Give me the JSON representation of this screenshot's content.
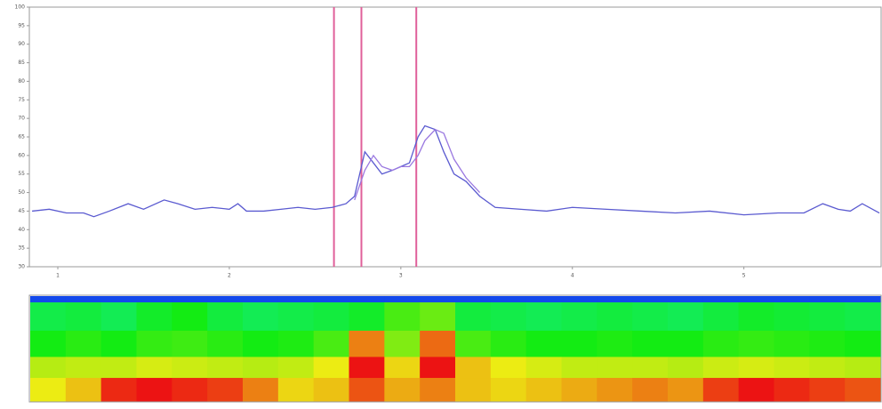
{
  "chart_data": [
    {
      "type": "line",
      "x": [
        0.85,
        0.95,
        1.05,
        1.15,
        1.21,
        1.3,
        1.41,
        1.5,
        1.62,
        1.7,
        1.8,
        1.9,
        2.0,
        2.05,
        2.1,
        2.2,
        2.3,
        2.4,
        2.5,
        2.6,
        2.68,
        2.73,
        2.79,
        2.84,
        2.89,
        2.95,
        3.0,
        3.05,
        3.1,
        3.14,
        3.2,
        3.25,
        3.31,
        3.38,
        3.46,
        3.55,
        3.7,
        3.85,
        4.0,
        4.2,
        4.4,
        4.6,
        4.8,
        5.0,
        5.2,
        5.35,
        5.46,
        5.55,
        5.62,
        5.69,
        5.79
      ],
      "series": [
        {
          "color": "#5a5ad0",
          "values": [
            45,
            45.5,
            44.5,
            44.5,
            43.5,
            45,
            47,
            45.5,
            48,
            47,
            45.5,
            46,
            45.5,
            47,
            45,
            45,
            45.5,
            46,
            45.5,
            46,
            47,
            49,
            61,
            58,
            55,
            56,
            57,
            58,
            65,
            68,
            67,
            61,
            55,
            53,
            49,
            46,
            45.5,
            45,
            46,
            45.5,
            45,
            44.5,
            45,
            44,
            44.5,
            44.5,
            47,
            45.5,
            45,
            47,
            44.5
          ]
        },
        {
          "color": "#9a78e0",
          "values": [
            null,
            null,
            null,
            null,
            null,
            null,
            null,
            null,
            null,
            null,
            null,
            null,
            null,
            null,
            null,
            null,
            null,
            null,
            null,
            null,
            null,
            48,
            56,
            60,
            57,
            56,
            57,
            57,
            60,
            64,
            67,
            66,
            59,
            54,
            50,
            null,
            null,
            null,
            null,
            null,
            null,
            null,
            null,
            null,
            null,
            null,
            null,
            null,
            null,
            null,
            null
          ]
        }
      ],
      "markers": [
        2.61,
        2.77,
        3.09
      ],
      "marker_color": "#e0609a",
      "xlim": [
        0.834,
        5.8
      ],
      "xticks": [
        1,
        2,
        3,
        4,
        5
      ],
      "ylim": [
        30,
        100
      ],
      "yticks": [
        30,
        35,
        40,
        45,
        50,
        55,
        60,
        65,
        70,
        75,
        80,
        85,
        90,
        95,
        100
      ],
      "grid": false
    },
    {
      "type": "heatmap",
      "z": [
        [
          15,
          15,
          15,
          15,
          15,
          15,
          15,
          15,
          15,
          15,
          15,
          15,
          15,
          15,
          15,
          15,
          15,
          15,
          15,
          15,
          15,
          15,
          15,
          15
        ],
        [
          45,
          46,
          44,
          48,
          50,
          46,
          44,
          45,
          46,
          48,
          55,
          58,
          46,
          45,
          44,
          45,
          46,
          45,
          44,
          46,
          48,
          47,
          46,
          45
        ],
        [
          50,
          52,
          50,
          53,
          54,
          52,
          50,
          51,
          55,
          80,
          60,
          82,
          55,
          52,
          50,
          50,
          51,
          50,
          50,
          52,
          53,
          52,
          51,
          50
        ],
        [
          65,
          66,
          66,
          68,
          67,
          66,
          65,
          66,
          70,
          90,
          72,
          90,
          74,
          70,
          68,
          66,
          66,
          66,
          65,
          67,
          68,
          67,
          66,
          65
        ],
        [
          70,
          74,
          88,
          92,
          88,
          86,
          80,
          72,
          74,
          84,
          76,
          80,
          74,
          72,
          74,
          76,
          78,
          80,
          78,
          86,
          90,
          88,
          86,
          84
        ]
      ]
    }
  ]
}
